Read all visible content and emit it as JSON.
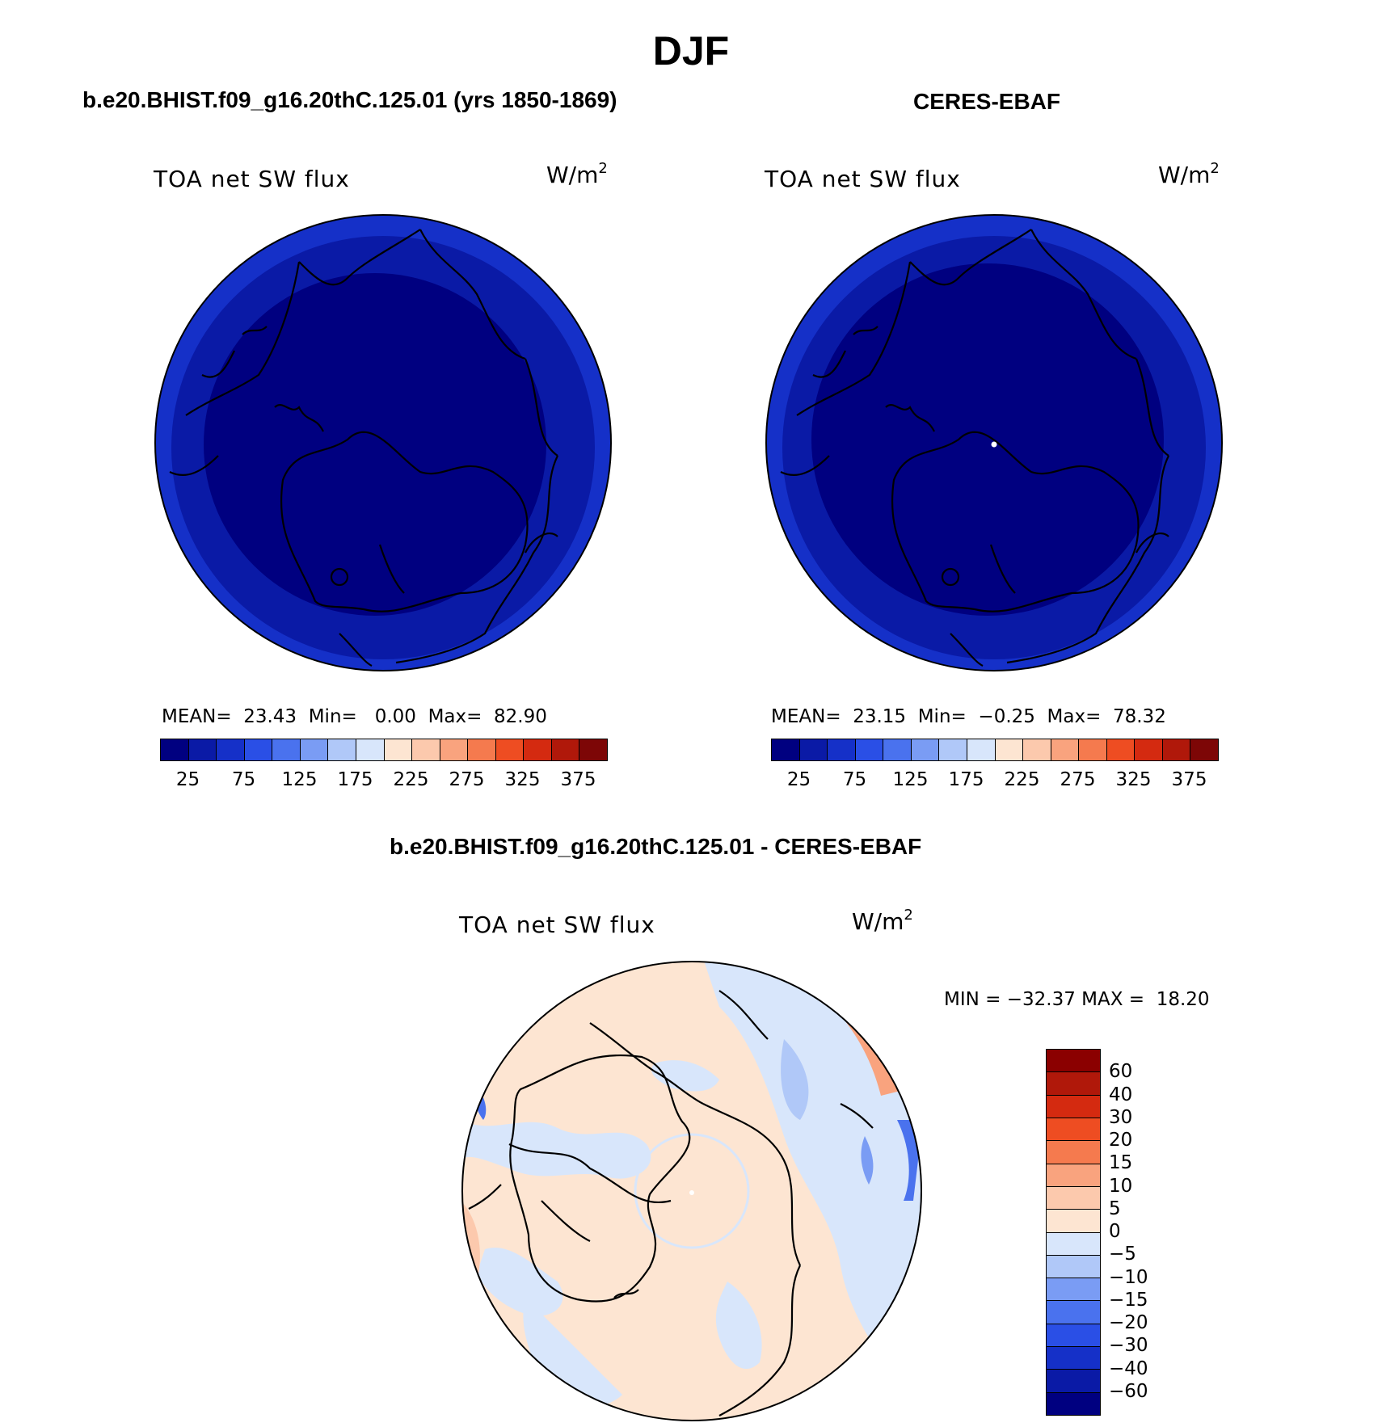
{
  "figure": {
    "title": "DJF"
  },
  "panels": [
    {
      "id": "model",
      "subtitle": "b.e20.BHIST.f09_g16.20thC.125.01 (yrs 1850-1869)",
      "variable": "TOA net SW flux",
      "units_base": "W/m",
      "units_exp": "2",
      "stats": {
        "mean_label": "MEAN=",
        "mean": "23.43",
        "min_label": "Min=",
        "min": "0.00",
        "max_label": "Max=",
        "max": "82.90"
      },
      "colorbar_ticks": [
        "25",
        "75",
        "125",
        "175",
        "225",
        "275",
        "325",
        "375"
      ]
    },
    {
      "id": "obs",
      "subtitle": "CERES-EBAF",
      "variable": "TOA net SW flux",
      "units_base": "W/m",
      "units_exp": "2",
      "stats": {
        "mean_label": "MEAN=",
        "mean": "23.15",
        "min_label": "Min=",
        "min": "−0.25",
        "max_label": "Max=",
        "max": "78.32"
      },
      "colorbar_ticks": [
        "25",
        "75",
        "125",
        "175",
        "225",
        "275",
        "325",
        "375"
      ]
    },
    {
      "id": "diff",
      "subtitle": "b.e20.BHIST.f09_g16.20thC.125.01 - CERES-EBAF",
      "variable": "TOA net SW flux",
      "units_base": "W/m",
      "units_exp": "2",
      "stats_text": "MIN = −32.37 MAX =  18.20",
      "colorbar_ticks": [
        "60",
        "40",
        "30",
        "20",
        "15",
        "10",
        "5",
        "0",
        "−5",
        "−10",
        "−15",
        "−20",
        "−30",
        "−40",
        "−60"
      ]
    }
  ],
  "colors": {
    "abs_colorbar": [
      "#000080",
      "#0a1aa6",
      "#1530c8",
      "#2a4fe6",
      "#4a72ee",
      "#7a9cf4",
      "#b0c8f8",
      "#d8e6fb",
      "#fde5d2",
      "#fcc9ad",
      "#f9a37e",
      "#f57a4e",
      "#ee4d22",
      "#d42a10",
      "#b0180a",
      "#7d0606"
    ],
    "diff_colorbar": [
      "#8b0000",
      "#b0180a",
      "#d42a10",
      "#ee4d22",
      "#f57a4e",
      "#f9a37e",
      "#fcc9ad",
      "#fde5d2",
      "#d8e6fb",
      "#b0c8f8",
      "#7a9cf4",
      "#4a72ee",
      "#2a4fe6",
      "#1530c8",
      "#0a1aa6",
      "#000080"
    ],
    "map_outer": "#1530c8",
    "map_mid": "#0a1aa6",
    "map_inner": "#000080",
    "diff_positive": "#fde5d2",
    "diff_negative": "#d8e6fb"
  }
}
